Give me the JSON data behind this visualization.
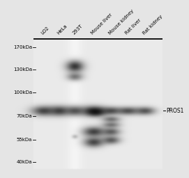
{
  "bg_color": "#e8e8e8",
  "outer_bg": "#f0f0f0",
  "lane_labels": [
    "LO2",
    "HeLa",
    "293T",
    "Mouse liver",
    "Mouse kidney",
    "Rat liver",
    "Rat kidney"
  ],
  "mw_markers": [
    "170kDa",
    "130kDa",
    "100kDa",
    "70kDa",
    "55kDa",
    "40kDa"
  ],
  "pros1_label": "PROS1",
  "fig_width": 2.71,
  "fig_height": 2.56,
  "dpi": 100
}
